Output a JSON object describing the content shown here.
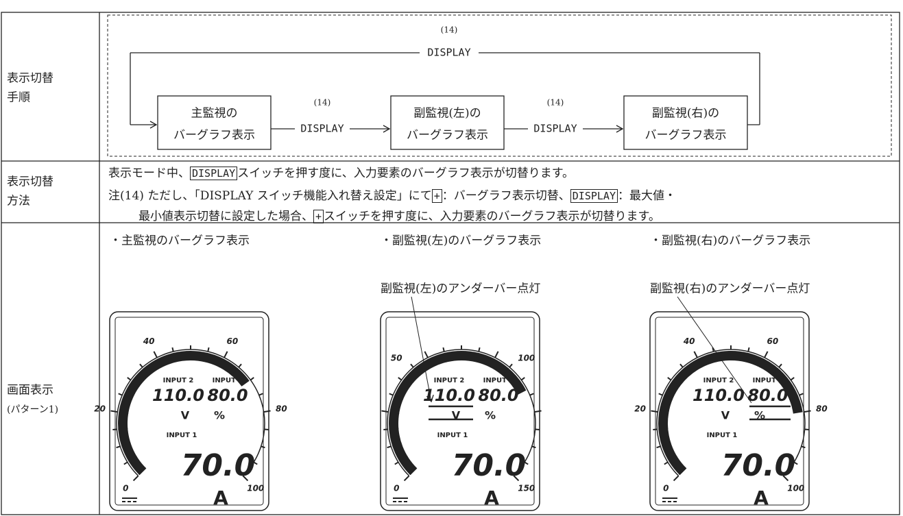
{
  "table": {
    "rows": [
      {
        "label": [
          "表示切替",
          "手順"
        ],
        "diagram": {
          "top_note": "(14)",
          "top_label": "DISPLAY",
          "boxes": [
            [
              "主監視の",
              "バーグラフ表示"
            ],
            [
              "副監視(左)の",
              "バーグラフ表示"
            ],
            [
              "副監視(右)の",
              "バーグラフ表示"
            ]
          ],
          "steps": [
            {
              "note": "(14)",
              "label": "DISPLAY"
            },
            {
              "note": "(14)",
              "label": "DISPLAY"
            }
          ]
        }
      },
      {
        "label": [
          "表示切替",
          "方法"
        ],
        "text": [
          "表示モード中、",
          "DISPLAY",
          "スイッチを押す度に、入力要素のバーグラフ表示が切替ります。"
        ],
        "note": {
          "mark": "注(14)",
          "parts": [
            "ただし、「DISPLAY スイッチ機能入れ替え設定」にて",
            "+",
            "：バーグラフ表示切替、",
            "DISPLAY",
            "：最大値・",
            "最小値表示切替に設定した場合、",
            "+",
            "スイッチを押す度に、入力要素のバーグラフ表示が切替ります。"
          ]
        }
      },
      {
        "label": [
          "画面表示",
          "(パターン1)"
        ],
        "panels": [
          {
            "caption": "・主監視のバーグラフ表示",
            "scale": [
              "0",
              "20",
              "40",
              "60",
              "80",
              "100"
            ],
            "display": {
              "input2": "INPUT 2",
              "value2": "110.0",
              "input3": "INPUT 3",
              "value3": "80.0",
              "unit2": "V",
              "unit3": "%",
              "input1": "INPUT 1",
              "value1": "70.0",
              "unit1": "A"
            }
          },
          {
            "caption": "・副監視(左)のバーグラフ表示",
            "annotation": "副監視(左)のアンダーバー点灯",
            "scale": [
              "0",
              "50",
              "100",
              "150"
            ],
            "display": {
              "input2": "INPUT 2",
              "value2": "110.0",
              "input3": "INPUT 3",
              "value3": "80.0",
              "unit2": "V",
              "unit3": "%",
              "input1": "INPUT 1",
              "value1": "70.0",
              "unit1": "A"
            }
          },
          {
            "caption": "・副監視(右)のバーグラフ表示",
            "annotation": "副監視(右)のアンダーバー点灯",
            "scale": [
              "0",
              "20",
              "40",
              "60",
              "80",
              "100"
            ],
            "display": {
              "input2": "INPUT 2",
              "value2": "110.0",
              "input3": "INPUT 3",
              "value3": "80.0",
              "unit2": "V",
              "unit3": "%",
              "input1": "INPUT 1",
              "value1": "70.0",
              "unit1": "A"
            }
          }
        ]
      }
    ]
  }
}
